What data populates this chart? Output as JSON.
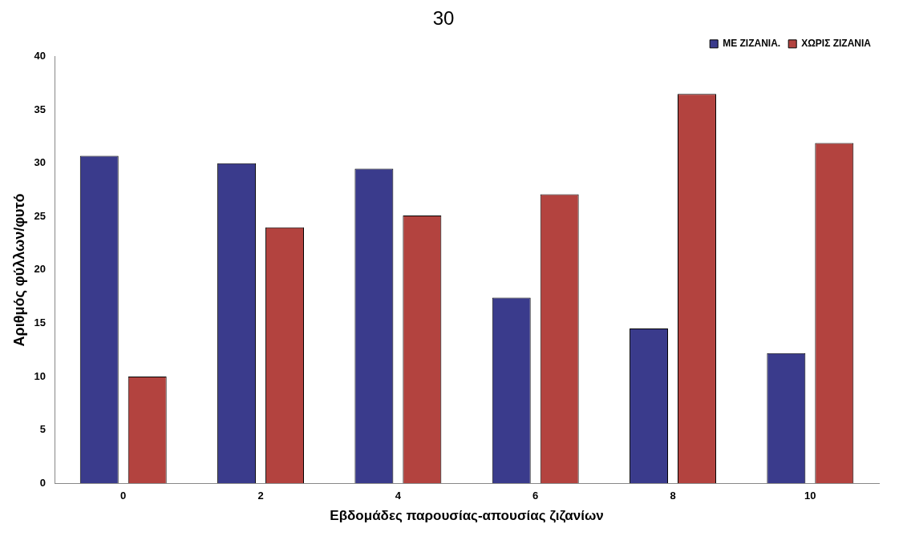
{
  "chart_data": {
    "type": "bar",
    "title": "30",
    "xlabel": "Εβδομάδες παρουσίας-απουσίας ζιζανίων",
    "ylabel": "Αριθμός φύλλων/φυτό",
    "categories": [
      "0",
      "2",
      "4",
      "6",
      "8",
      "10"
    ],
    "series": [
      {
        "name": "ΜΕ ΖΙΖΑΝΙΑ.",
        "color": "#3a3b8c",
        "values": [
          30.7,
          30.0,
          29.5,
          17.4,
          14.5,
          12.2
        ]
      },
      {
        "name": "ΧΩΡΙΣ ΖΙΖΑΝΙΑ",
        "color": "#b3433f",
        "values": [
          10.0,
          24.0,
          25.1,
          27.1,
          36.5,
          31.9
        ]
      }
    ],
    "ylim": [
      0,
      40
    ],
    "yticks": [
      0,
      5,
      10,
      15,
      20,
      25,
      30,
      35,
      40
    ],
    "grid": false,
    "legend": "top right"
  }
}
